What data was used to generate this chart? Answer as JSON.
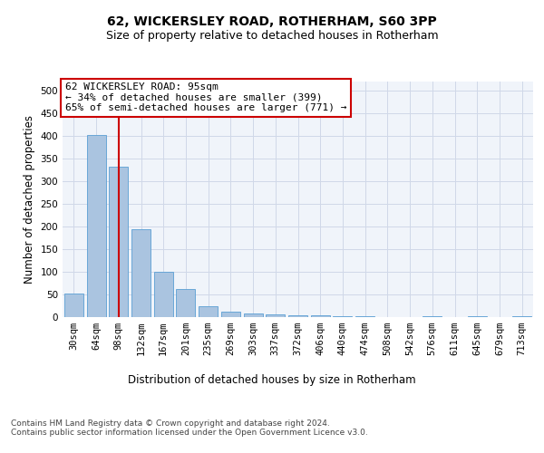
{
  "title": "62, WICKERSLEY ROAD, ROTHERHAM, S60 3PP",
  "subtitle": "Size of property relative to detached houses in Rotherham",
  "xlabel": "Distribution of detached houses by size in Rotherham",
  "ylabel": "Number of detached properties",
  "categories": [
    "30sqm",
    "64sqm",
    "98sqm",
    "132sqm",
    "167sqm",
    "201sqm",
    "235sqm",
    "269sqm",
    "303sqm",
    "337sqm",
    "372sqm",
    "406sqm",
    "440sqm",
    "474sqm",
    "508sqm",
    "542sqm",
    "576sqm",
    "611sqm",
    "645sqm",
    "679sqm",
    "713sqm"
  ],
  "values": [
    52,
    402,
    332,
    193,
    100,
    63,
    24,
    13,
    9,
    7,
    5,
    4,
    2,
    2,
    0,
    0,
    2,
    0,
    2,
    0,
    2
  ],
  "bar_color": "#aac4e0",
  "bar_edge_color": "#5a9fd4",
  "vline_x": 2,
  "vline_color": "#cc0000",
  "annotation_text": "62 WICKERSLEY ROAD: 95sqm\n← 34% of detached houses are smaller (399)\n65% of semi-detached houses are larger (771) →",
  "annotation_box_color": "#ffffff",
  "annotation_box_edge_color": "#cc0000",
  "ylim": [
    0,
    520
  ],
  "yticks": [
    0,
    50,
    100,
    150,
    200,
    250,
    300,
    350,
    400,
    450,
    500
  ],
  "footer_text": "Contains HM Land Registry data © Crown copyright and database right 2024.\nContains public sector information licensed under the Open Government Licence v3.0.",
  "grid_color": "#d0d8e8",
  "background_color": "#f0f4fa",
  "title_fontsize": 10,
  "subtitle_fontsize": 9,
  "axis_label_fontsize": 8.5,
  "tick_fontsize": 7.5,
  "annotation_fontsize": 8,
  "footer_fontsize": 6.5
}
